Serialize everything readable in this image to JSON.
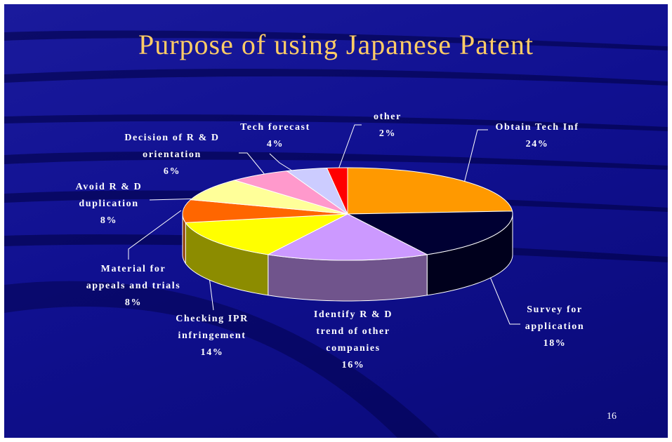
{
  "chart_data": {
    "type": "pie3d",
    "title": "Purpose of using Japanese Patent",
    "categories": [
      "Obtain Tech Inf",
      "Survey for\napplication",
      "Identify R & D\ntrend of other\ncompanies",
      "Checking IPR\ninfringement",
      "Material for\nappeals and trials",
      "Avoid R & D\nduplication",
      "Decision of R & D\norientation",
      "Tech forecast",
      "other"
    ],
    "values": [
      24,
      18,
      16,
      14,
      8,
      8,
      6,
      4,
      2
    ],
    "value_labels": [
      "24%",
      "18%",
      "16%",
      "14%",
      "8%",
      "8%",
      "6%",
      "4%",
      "2%"
    ],
    "colors": [
      "#ff9900",
      "#000033",
      "#cc99ff",
      "#ffff00",
      "#ff6600",
      "#ffff99",
      "#ff99cc",
      "#ccccff",
      "#ff0000"
    ]
  },
  "page_number": "16"
}
